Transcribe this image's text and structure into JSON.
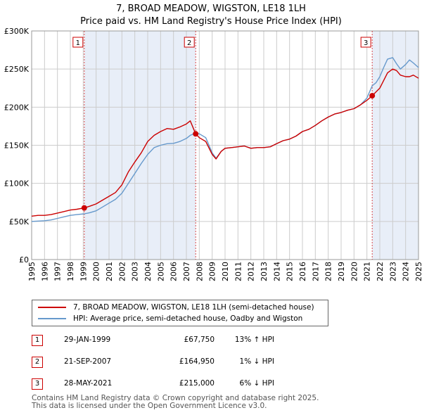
{
  "title_line1": "7, BROAD MEADOW, WIGSTON, LE18 1LH",
  "title_line2": "Price paid vs. HM Land Registry's House Price Index (HPI)",
  "colors": {
    "property": "#cc0000",
    "hpi": "#6699cc",
    "shade": "#e8eef8",
    "grid": "#cccccc"
  },
  "chart_data": {
    "type": "line",
    "title": "7, BROAD MEADOW, WIGSTON, LE18 1LH — Price paid vs. HM Land Registry's House Price Index (HPI)",
    "xlabel": "",
    "ylabel": "",
    "xlim": [
      1995,
      2025
    ],
    "ylim": [
      0,
      300000
    ],
    "yticks": [
      0,
      50000,
      100000,
      150000,
      200000,
      250000,
      300000
    ],
    "ytick_labels": [
      "£0",
      "£50K",
      "£100K",
      "£150K",
      "£200K",
      "£250K",
      "£300K"
    ],
    "xticks": [
      1995,
      1996,
      1997,
      1998,
      1999,
      2000,
      2001,
      2002,
      2003,
      2004,
      2005,
      2006,
      2007,
      2008,
      2009,
      2010,
      2011,
      2012,
      2013,
      2014,
      2015,
      2016,
      2017,
      2018,
      2019,
      2020,
      2021,
      2022,
      2023,
      2024,
      2025
    ],
    "grid": true,
    "series": [
      {
        "name": "7, BROAD MEADOW, WIGSTON, LE18 1LH (semi-detached house)",
        "x": [
          1995.0,
          1995.5,
          1996.0,
          1996.5,
          1997.0,
          1997.5,
          1998.0,
          1998.5,
          1999.08,
          1999.5,
          2000.0,
          2000.5,
          2001.0,
          2001.5,
          2002.0,
          2002.5,
          2003.0,
          2003.5,
          2004.0,
          2004.5,
          2005.0,
          2005.5,
          2006.0,
          2006.5,
          2007.0,
          2007.3,
          2007.72,
          2008.0,
          2008.5,
          2009.0,
          2009.3,
          2009.7,
          2010.0,
          2010.5,
          2011.0,
          2011.5,
          2012.0,
          2012.5,
          2013.0,
          2013.5,
          2014.0,
          2014.5,
          2015.0,
          2015.5,
          2016.0,
          2016.5,
          2017.0,
          2017.5,
          2018.0,
          2018.5,
          2019.0,
          2019.5,
          2020.0,
          2020.5,
          2021.0,
          2021.41,
          2021.7,
          2022.0,
          2022.3,
          2022.6,
          2023.0,
          2023.3,
          2023.6,
          2024.0,
          2024.3,
          2024.6,
          2025.0
        ],
        "values": [
          57000,
          58000,
          58000,
          59000,
          61000,
          63000,
          65000,
          66000,
          67750,
          70000,
          73000,
          78000,
          83000,
          88000,
          98000,
          115000,
          128000,
          140000,
          155000,
          163000,
          168000,
          172000,
          171000,
          174000,
          178000,
          182000,
          164950,
          160000,
          155000,
          138000,
          132000,
          142000,
          146000,
          147000,
          148000,
          149000,
          146000,
          147000,
          147000,
          148000,
          152000,
          156000,
          158000,
          162000,
          168000,
          171000,
          176000,
          182000,
          187000,
          191000,
          193000,
          196000,
          198000,
          203000,
          209000,
          215000,
          220000,
          225000,
          235000,
          245000,
          250000,
          248000,
          242000,
          240000,
          240000,
          242000,
          238000
        ]
      },
      {
        "name": "HPI: Average price, semi-detached house, Oadby and Wigston",
        "x": [
          1995.0,
          1995.5,
          1996.0,
          1996.5,
          1997.0,
          1997.5,
          1998.0,
          1998.5,
          1999.08,
          1999.5,
          2000.0,
          2000.5,
          2001.0,
          2001.5,
          2002.0,
          2002.5,
          2003.0,
          2003.5,
          2004.0,
          2004.5,
          2005.0,
          2005.5,
          2006.0,
          2006.5,
          2007.0,
          2007.3,
          2007.72,
          2008.0,
          2008.5,
          2009.0,
          2009.3,
          2009.7,
          2010.0,
          2010.5,
          2011.0,
          2011.5,
          2012.0,
          2012.5,
          2013.0,
          2013.5,
          2014.0,
          2014.5,
          2015.0,
          2015.5,
          2016.0,
          2016.5,
          2017.0,
          2017.5,
          2018.0,
          2018.5,
          2019.0,
          2019.5,
          2020.0,
          2020.5,
          2021.0,
          2021.41,
          2021.7,
          2022.0,
          2022.3,
          2022.6,
          2023.0,
          2023.3,
          2023.6,
          2024.0,
          2024.3,
          2024.6,
          2025.0
        ],
        "values": [
          50000,
          50500,
          51000,
          52000,
          54000,
          56000,
          58000,
          59000,
          60000,
          61500,
          64000,
          69000,
          74000,
          79000,
          87000,
          100000,
          113000,
          126000,
          138000,
          147000,
          150000,
          152000,
          152500,
          155000,
          159000,
          163000,
          166000,
          165000,
          160000,
          140000,
          133000,
          142000,
          146000,
          147000,
          148000,
          149000,
          146000,
          147000,
          147000,
          148000,
          152000,
          156000,
          158000,
          162000,
          168000,
          171000,
          176000,
          182000,
          187000,
          191000,
          193000,
          196000,
          198000,
          203000,
          212000,
          228000,
          232000,
          240000,
          252000,
          263000,
          265000,
          257000,
          250000,
          256000,
          262000,
          258000,
          252000
        ]
      }
    ],
    "annotations": [
      {
        "label": "1",
        "x": 1999.08,
        "value": 67750
      },
      {
        "label": "2",
        "x": 2007.72,
        "value": 164950
      },
      {
        "label": "3",
        "x": 2021.41,
        "value": 215000
      }
    ]
  },
  "legend": {
    "property_label": "7, BROAD MEADOW, WIGSTON, LE18 1LH (semi-detached house)",
    "hpi_label": "HPI: Average price, semi-detached house, Oadby and Wigston"
  },
  "transactions": [
    {
      "num": "1",
      "date": "29-JAN-1999",
      "price": "£67,750",
      "hpi": "13% ↑ HPI"
    },
    {
      "num": "2",
      "date": "21-SEP-2007",
      "price": "£164,950",
      "hpi": "1% ↓ HPI"
    },
    {
      "num": "3",
      "date": "28-MAY-2021",
      "price": "£215,000",
      "hpi": "6% ↓ HPI"
    }
  ],
  "footer_line1": "Contains HM Land Registry data © Crown copyright and database right 2025.",
  "footer_line2": "This data is licensed under the Open Government Licence v3.0."
}
